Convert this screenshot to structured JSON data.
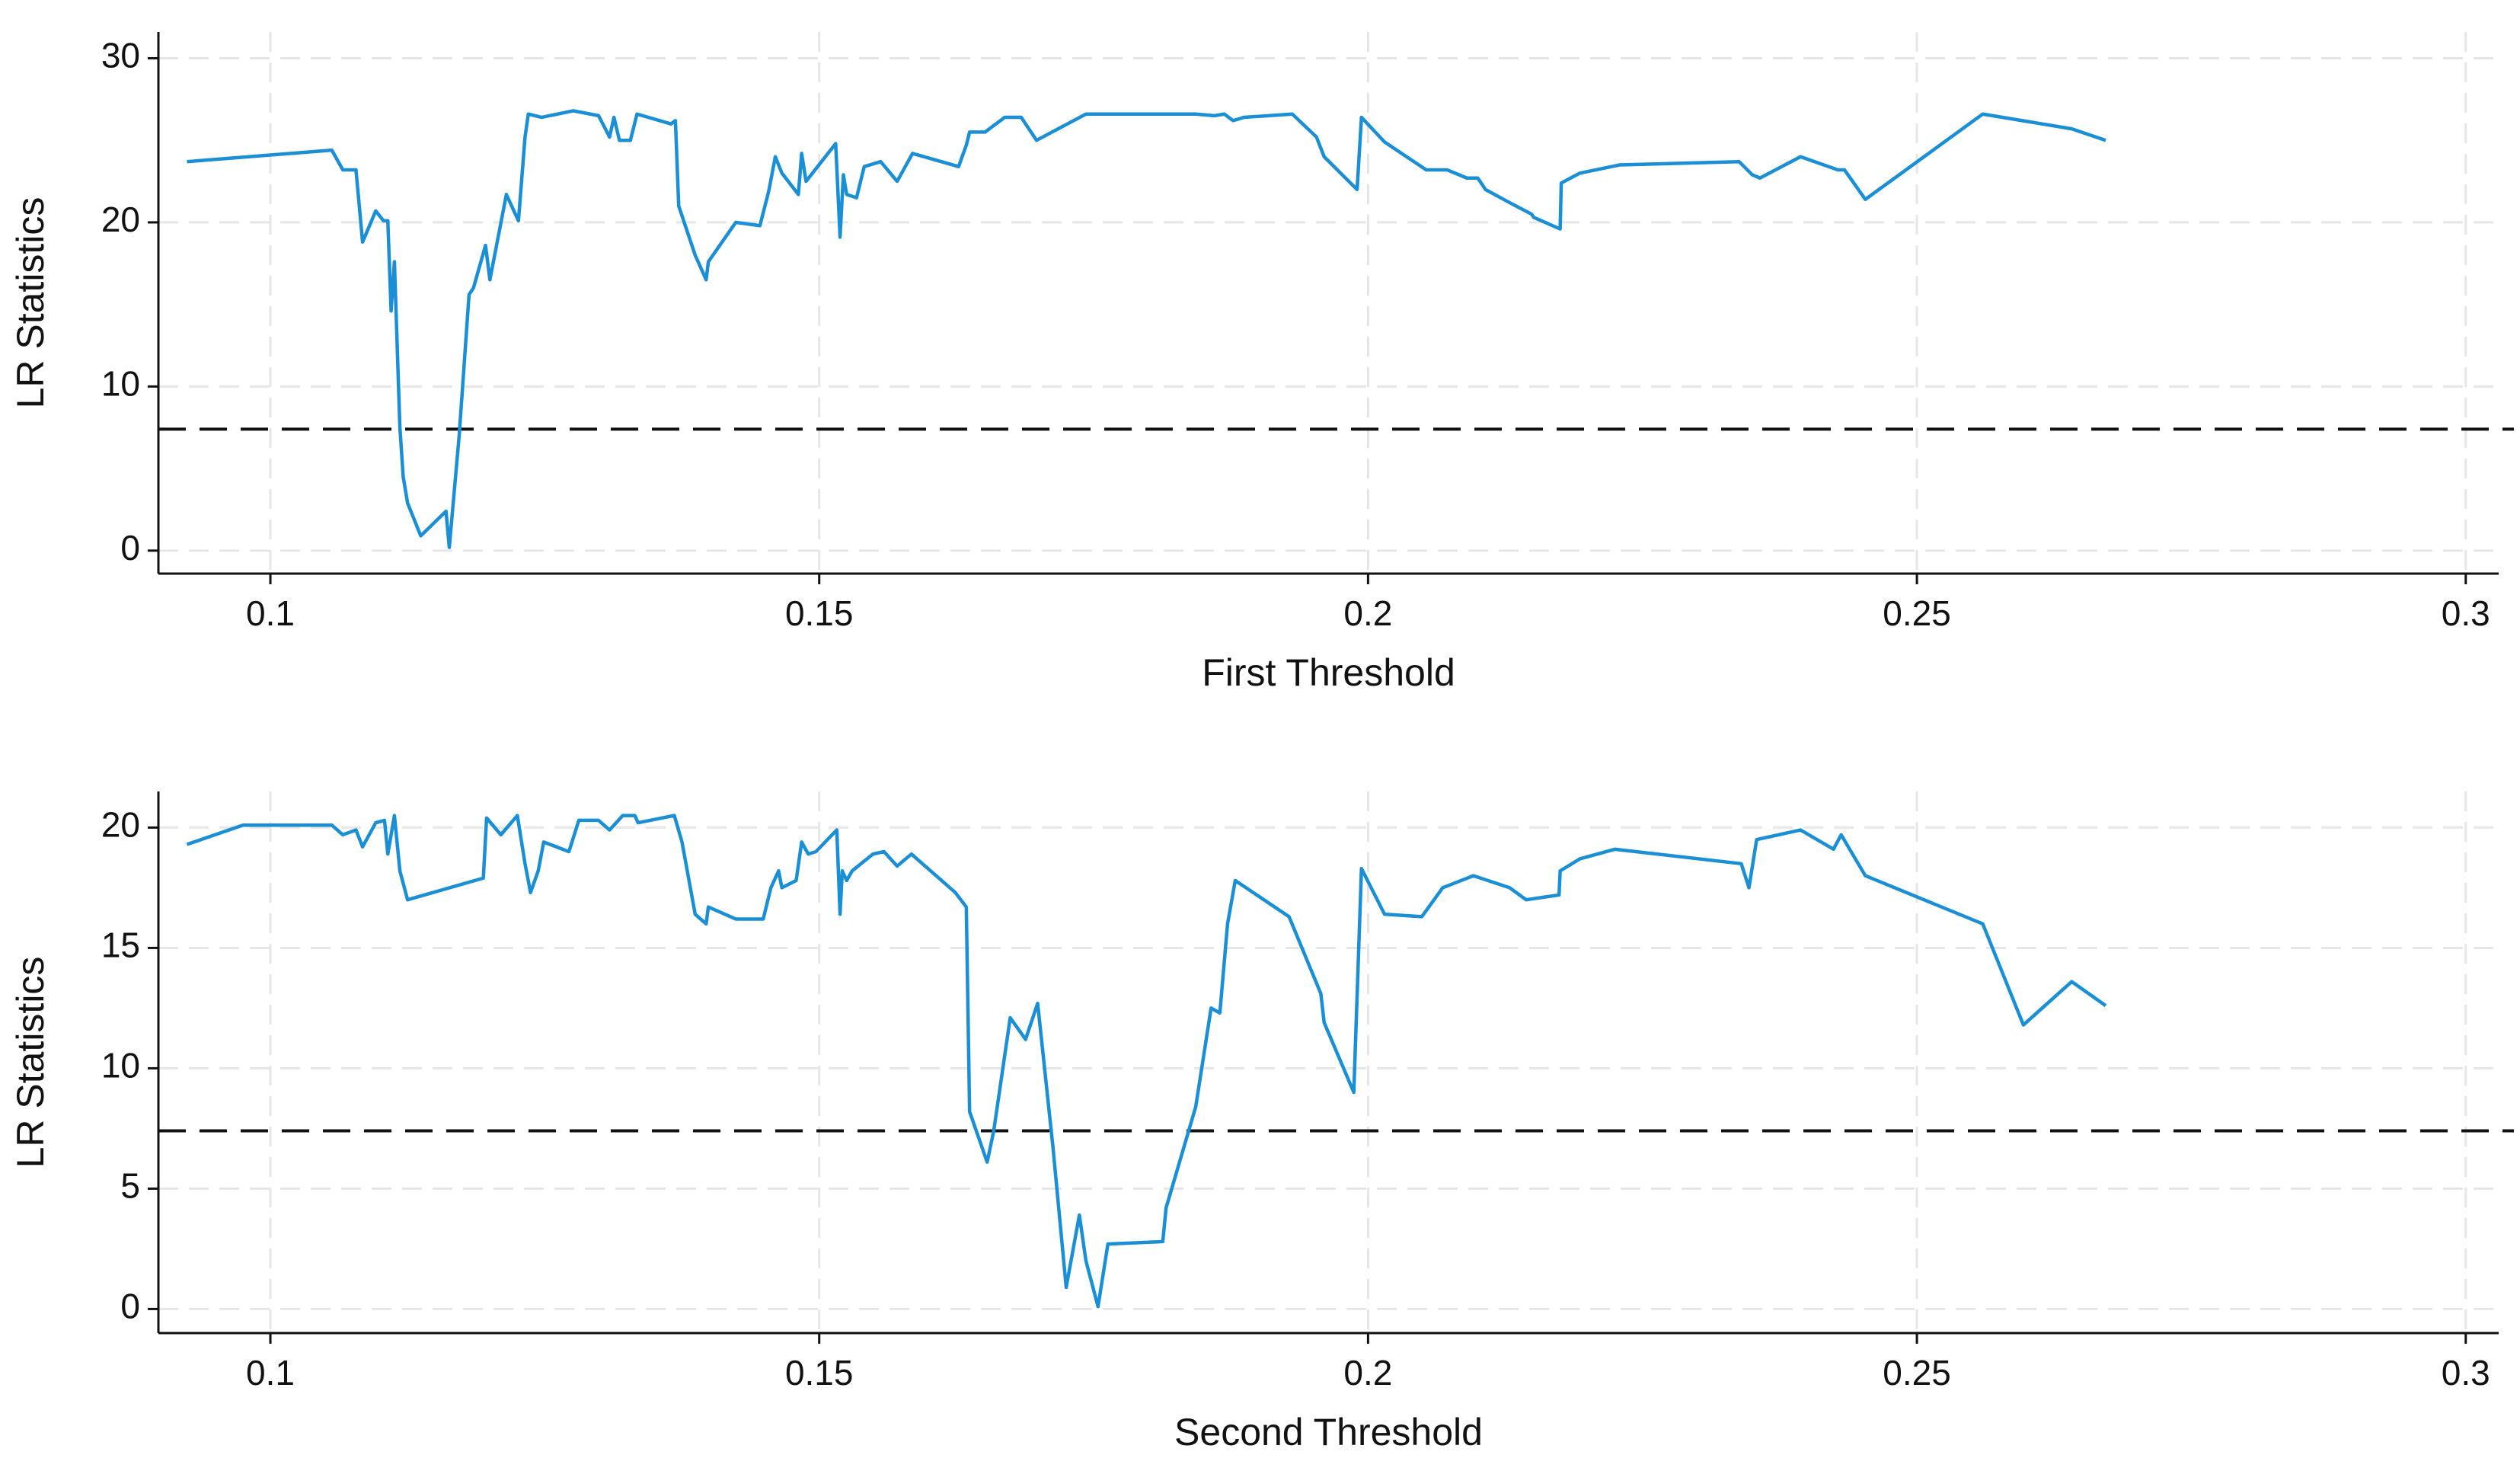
{
  "chart_data": [
    {
      "type": "line",
      "x_label": "First Threshold",
      "y_label": "LR Statistics",
      "x": [
        0.0924,
        0.1056,
        0.1066,
        0.1078,
        0.1084,
        0.1096,
        0.1103,
        0.1107,
        0.111,
        0.1113,
        0.1118,
        0.1121,
        0.1125,
        0.1137,
        0.116,
        0.1163,
        0.1172,
        0.1181,
        0.1185,
        0.1196,
        0.12,
        0.1215,
        0.1226,
        0.1232,
        0.1235,
        0.1247,
        0.1276,
        0.1299,
        0.1309,
        0.1313,
        0.1318,
        0.1328,
        0.1334,
        0.1365,
        0.1369,
        0.1372,
        0.1387,
        0.1397,
        0.1399,
        0.1424,
        0.1446,
        0.1454,
        0.146,
        0.1466,
        0.1481,
        0.1484,
        0.1488,
        0.1515,
        0.1519,
        0.1522,
        0.1525,
        0.1534,
        0.1541,
        0.1556,
        0.1571,
        0.1585,
        0.1627,
        0.1634,
        0.1637,
        0.1651,
        0.1669,
        0.1684,
        0.1698,
        0.1743,
        0.1762,
        0.1843,
        0.186,
        0.1869,
        0.1877,
        0.1887,
        0.1931,
        0.1953,
        0.196,
        0.199,
        0.1994,
        0.2015,
        0.2053,
        0.2072,
        0.209,
        0.21,
        0.2107,
        0.2129,
        0.2149,
        0.2151,
        0.2175,
        0.2176,
        0.2193,
        0.2229,
        0.2338,
        0.235,
        0.2357,
        0.2394,
        0.2428,
        0.2434,
        0.2453,
        0.256,
        0.2641,
        0.2672
      ],
      "values": [
        23.7,
        24.4,
        23.2,
        23.2,
        18.8,
        20.7,
        20.1,
        20.1,
        14.6,
        17.6,
        7.5,
        4.5,
        2.9,
        0.9,
        2.4,
        0.2,
        7.0,
        15.6,
        16.0,
        18.6,
        16.5,
        21.7,
        20.1,
        25.2,
        26.6,
        26.4,
        26.8,
        26.5,
        25.2,
        26.4,
        25.0,
        25.0,
        26.6,
        26.0,
        26.2,
        21.0,
        18.0,
        16.5,
        17.6,
        20.0,
        19.8,
        21.9,
        24.0,
        23.0,
        21.7,
        24.2,
        22.5,
        24.8,
        19.1,
        22.9,
        21.7,
        21.5,
        23.4,
        23.7,
        22.5,
        24.2,
        23.4,
        24.7,
        25.5,
        25.5,
        26.4,
        26.4,
        25.0,
        26.6,
        26.6,
        26.6,
        26.5,
        26.6,
        26.2,
        26.4,
        26.6,
        25.2,
        24.0,
        22.0,
        26.4,
        24.9,
        23.2,
        23.2,
        22.7,
        22.7,
        22.0,
        21.2,
        20.5,
        20.3,
        19.6,
        22.4,
        23.0,
        23.5,
        23.7,
        22.9,
        22.7,
        24.0,
        23.2,
        23.2,
        21.4,
        26.6,
        25.7,
        25.0
      ],
      "color": "#1a8fd6",
      "reference_line": 7.4,
      "xlim": [
        0.0898,
        0.303
      ],
      "xticks": [
        0.1,
        0.15,
        0.2,
        0.25,
        0.3
      ],
      "ylim": [
        -1.4,
        31.6
      ],
      "yticks": [
        0,
        10,
        20,
        30
      ],
      "grid": true
    },
    {
      "type": "line",
      "x_label": "Second Threshold",
      "y_label": "LR Statistics",
      "x": [
        0.0924,
        0.0975,
        0.1056,
        0.1066,
        0.1078,
        0.1084,
        0.1096,
        0.1104,
        0.1107,
        0.1113,
        0.1118,
        0.1125,
        0.1194,
        0.1197,
        0.121,
        0.1225,
        0.1232,
        0.1237,
        0.1244,
        0.1249,
        0.1272,
        0.1281,
        0.1299,
        0.1309,
        0.1321,
        0.1332,
        0.1335,
        0.1368,
        0.1375,
        0.1387,
        0.1397,
        0.1399,
        0.1424,
        0.1449,
        0.1456,
        0.1463,
        0.1466,
        0.1479,
        0.1484,
        0.149,
        0.1497,
        0.1516,
        0.1519,
        0.1521,
        0.1525,
        0.153,
        0.1549,
        0.1559,
        0.1571,
        0.1584,
        0.1624,
        0.1634,
        0.1637,
        0.1653,
        0.1659,
        0.1674,
        0.1688,
        0.1699,
        0.1713,
        0.1725,
        0.1737,
        0.1743,
        0.1754,
        0.1763,
        0.1813,
        0.1816,
        0.1843,
        0.1857,
        0.1865,
        0.1872,
        0.1879,
        0.1928,
        0.1957,
        0.196,
        0.1987,
        0.1994,
        0.2015,
        0.2049,
        0.2068,
        0.2096,
        0.2129,
        0.2144,
        0.2174,
        0.2175,
        0.2193,
        0.2225,
        0.234,
        0.2347,
        0.2354,
        0.2394,
        0.2424,
        0.2431,
        0.2453,
        0.256,
        0.2597,
        0.2641,
        0.2672
      ],
      "values": [
        19.3,
        20.1,
        20.1,
        19.7,
        19.9,
        19.2,
        20.2,
        20.3,
        18.9,
        20.5,
        18.2,
        17.0,
        17.9,
        20.4,
        19.7,
        20.5,
        18.5,
        17.3,
        18.2,
        19.4,
        19.0,
        20.3,
        20.3,
        19.9,
        20.5,
        20.5,
        20.2,
        20.5,
        19.4,
        16.4,
        16.0,
        16.7,
        16.2,
        16.2,
        17.5,
        18.2,
        17.5,
        17.8,
        19.4,
        18.9,
        19.0,
        19.9,
        16.4,
        18.2,
        17.8,
        18.2,
        18.9,
        19.0,
        18.4,
        18.9,
        17.3,
        16.7,
        8.2,
        6.1,
        7.4,
        12.1,
        11.2,
        12.7,
        6.7,
        0.9,
        3.9,
        2.0,
        0.1,
        2.7,
        2.8,
        4.2,
        8.4,
        12.5,
        12.3,
        16.0,
        17.8,
        16.3,
        13.1,
        11.9,
        9.0,
        18.3,
        16.4,
        16.3,
        17.5,
        18.0,
        17.5,
        17.0,
        17.2,
        18.2,
        18.7,
        19.1,
        18.5,
        17.5,
        19.5,
        19.9,
        19.1,
        19.7,
        18.0,
        16.0,
        11.8,
        13.6,
        12.6
      ],
      "color": "#1a8fd6",
      "reference_line": 7.4,
      "xlim": [
        0.0898,
        0.303
      ],
      "xticks": [
        0.1,
        0.15,
        0.2,
        0.25,
        0.3
      ],
      "ylim": [
        -1.0,
        21.5
      ],
      "yticks": [
        0,
        5,
        10,
        15,
        20
      ],
      "grid": true
    }
  ]
}
